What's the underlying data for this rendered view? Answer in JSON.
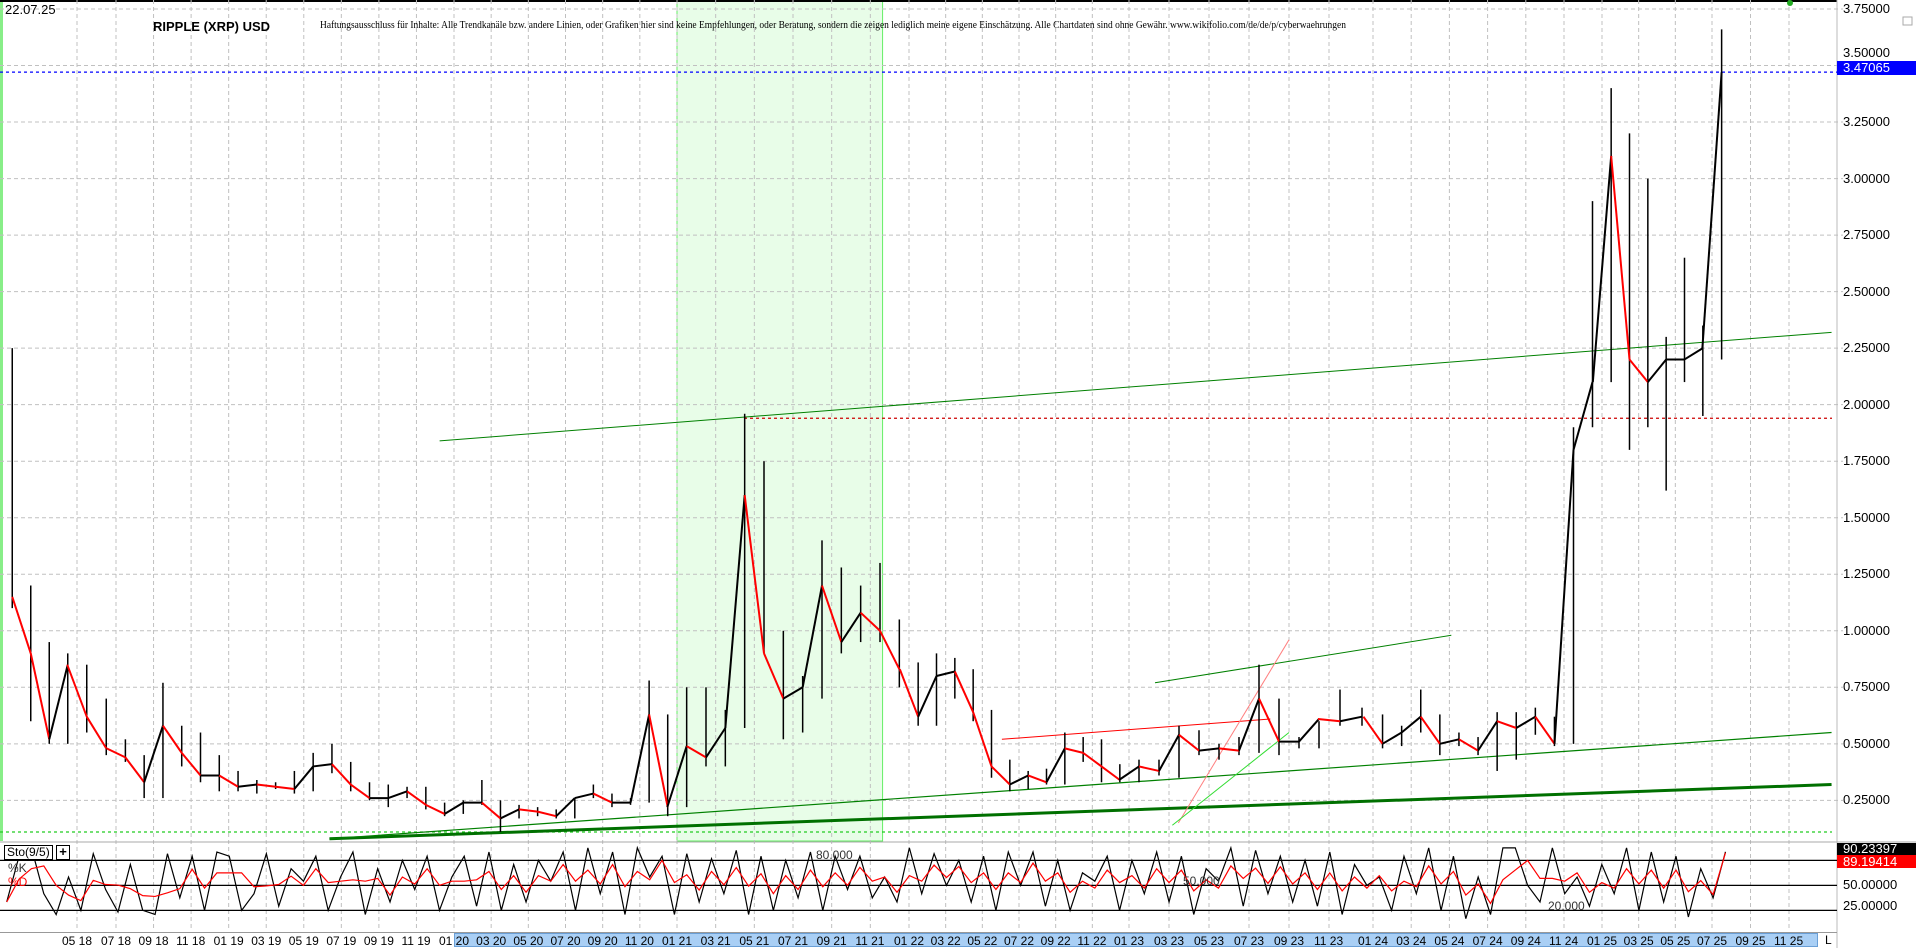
{
  "header": {
    "date": "22.07.25",
    "title": "RIPPLE (XRP) USD",
    "disclaimer": "Haftungsausschluss für Inhalte: Alle Trendkanäle bzw. andere Linien, oder Grafiken hier sind keine Empfehlungen, oder Beratung, sondern die zeigen lediglich meine eigene Einschätzung. Alle Chartdaten sind ohne Gewähr.  www.wikifolio.com/de/de/p/cyberwaehrungen"
  },
  "chart_data": [
    {
      "type": "candlestick",
      "title": "RIPPLE (XRP) USD",
      "grid": true,
      "y_axis_position": "right",
      "ylim": [
        0,
        3.75
      ],
      "y_ticks": [
        "3.75000",
        "3.50000",
        "3.25000",
        "3.00000",
        "2.75000",
        "2.50000",
        "2.25000",
        "2.00000",
        "1.75000",
        "1.50000",
        "1.25000",
        "1.00000",
        "0.75000",
        "0.50000",
        "0.25000"
      ],
      "last_price": "3.47065",
      "last_price_color": "#0000ff",
      "up_color": "#000000",
      "down_color": "#ff0000",
      "start_month": "2018-01",
      "monthly_hlc": [
        [
          2.25,
          1.1,
          1.15
        ],
        [
          1.2,
          0.6,
          0.9
        ],
        [
          0.95,
          0.5,
          0.52
        ],
        [
          0.9,
          0.5,
          0.85
        ],
        [
          0.85,
          0.55,
          0.62
        ],
        [
          0.7,
          0.45,
          0.48
        ],
        [
          0.52,
          0.42,
          0.44
        ],
        [
          0.45,
          0.26,
          0.33
        ],
        [
          0.77,
          0.26,
          0.58
        ],
        [
          0.58,
          0.4,
          0.46
        ],
        [
          0.55,
          0.33,
          0.36
        ],
        [
          0.45,
          0.29,
          0.36
        ],
        [
          0.38,
          0.29,
          0.31
        ],
        [
          0.34,
          0.28,
          0.32
        ],
        [
          0.33,
          0.3,
          0.31
        ],
        [
          0.38,
          0.28,
          0.3
        ],
        [
          0.46,
          0.29,
          0.4
        ],
        [
          0.5,
          0.37,
          0.41
        ],
        [
          0.42,
          0.29,
          0.32
        ],
        [
          0.33,
          0.25,
          0.26
        ],
        [
          0.32,
          0.22,
          0.26
        ],
        [
          0.31,
          0.26,
          0.29
        ],
        [
          0.31,
          0.21,
          0.23
        ],
        [
          0.24,
          0.18,
          0.19
        ],
        [
          0.25,
          0.19,
          0.24
        ],
        [
          0.34,
          0.23,
          0.24
        ],
        [
          0.25,
          0.11,
          0.17
        ],
        [
          0.23,
          0.17,
          0.21
        ],
        [
          0.22,
          0.18,
          0.2
        ],
        [
          0.21,
          0.17,
          0.18
        ],
        [
          0.26,
          0.17,
          0.26
        ],
        [
          0.32,
          0.26,
          0.28
        ],
        [
          0.28,
          0.22,
          0.24
        ],
        [
          0.26,
          0.23,
          0.24
        ],
        [
          0.78,
          0.24,
          0.63
        ],
        [
          0.63,
          0.18,
          0.22
        ],
        [
          0.75,
          0.22,
          0.49
        ],
        [
          0.75,
          0.4,
          0.44
        ],
        [
          0.65,
          0.4,
          0.57
        ],
        [
          1.96,
          0.57,
          1.6
        ],
        [
          1.75,
          0.9,
          0.9
        ],
        [
          1.0,
          0.52,
          0.7
        ],
        [
          0.8,
          0.55,
          0.75
        ],
        [
          1.4,
          0.7,
          1.2
        ],
        [
          1.28,
          0.9,
          0.95
        ],
        [
          1.2,
          0.95,
          1.08
        ],
        [
          1.3,
          0.95,
          1.0
        ],
        [
          1.05,
          0.75,
          0.83
        ],
        [
          0.86,
          0.58,
          0.62
        ],
        [
          0.9,
          0.58,
          0.8
        ],
        [
          0.88,
          0.7,
          0.82
        ],
        [
          0.83,
          0.6,
          0.64
        ],
        [
          0.65,
          0.35,
          0.4
        ],
        [
          0.43,
          0.29,
          0.32
        ],
        [
          0.38,
          0.3,
          0.36
        ],
        [
          0.39,
          0.32,
          0.33
        ],
        [
          0.55,
          0.32,
          0.48
        ],
        [
          0.53,
          0.42,
          0.46
        ],
        [
          0.52,
          0.33,
          0.4
        ],
        [
          0.41,
          0.33,
          0.34
        ],
        [
          0.43,
          0.33,
          0.4
        ],
        [
          0.43,
          0.36,
          0.38
        ],
        [
          0.58,
          0.35,
          0.54
        ],
        [
          0.56,
          0.45,
          0.47
        ],
        [
          0.5,
          0.43,
          0.48
        ],
        [
          0.53,
          0.45,
          0.47
        ],
        [
          0.85,
          0.46,
          0.7
        ],
        [
          0.7,
          0.45,
          0.51
        ],
        [
          0.53,
          0.48,
          0.51
        ],
        [
          0.6,
          0.48,
          0.61
        ],
        [
          0.74,
          0.58,
          0.6
        ],
        [
          0.66,
          0.58,
          0.62
        ],
        [
          0.63,
          0.48,
          0.5
        ],
        [
          0.58,
          0.49,
          0.55
        ],
        [
          0.74,
          0.55,
          0.62
        ],
        [
          0.63,
          0.45,
          0.5
        ],
        [
          0.55,
          0.49,
          0.52
        ],
        [
          0.53,
          0.45,
          0.47
        ],
        [
          0.64,
          0.38,
          0.6
        ],
        [
          0.64,
          0.43,
          0.57
        ],
        [
          0.66,
          0.54,
          0.62
        ],
        [
          0.62,
          0.49,
          0.5
        ],
        [
          1.9,
          0.5,
          1.8
        ],
        [
          2.9,
          1.9,
          2.1
        ],
        [
          3.4,
          2.1,
          3.1
        ],
        [
          3.2,
          1.8,
          2.2
        ],
        [
          3.0,
          1.9,
          2.1
        ],
        [
          2.3,
          1.62,
          2.2
        ],
        [
          2.65,
          2.1,
          2.2
        ],
        [
          2.35,
          1.95,
          2.25
        ],
        [
          3.66,
          2.2,
          3.47
        ]
      ],
      "x_tick_labels": [
        "05 18",
        "07 18",
        "09 18",
        "11 18",
        "01 19",
        "03 19",
        "05 19",
        "07 19",
        "09 19",
        "11 19",
        "01 20",
        "03 20",
        "05 20",
        "07 20",
        "09 20",
        "11 20",
        "01 21",
        "03 21",
        "05 21",
        "07 21",
        "09 21",
        "11 21",
        "01 22",
        "03 22",
        "05 22",
        "07 22",
        "09 22",
        "11 22",
        "01 23",
        "03 23",
        "05 23",
        "07 23",
        "09 23",
        "11 23",
        "01 24",
        "03 24",
        "05 24",
        "07 24",
        "09 24",
        "11 24",
        "01 25",
        "03 25",
        "05 25",
        "07 25",
        "09 25",
        "11 25"
      ],
      "highlight_period": {
        "from": "2021-01-01",
        "to": "2021-11-20",
        "color": "#e8fde8"
      },
      "trendlines": [
        {
          "from": [
            "2019-12-08",
            1.84
          ],
          "to": [
            "2026-01-10",
            2.32
          ],
          "color": "#008000",
          "width": 1
        },
        {
          "from": [
            "2019-06-12",
            0.08
          ],
          "to": [
            "2026-01-10",
            0.32
          ],
          "color": "#007000",
          "width": 3
        },
        {
          "from": [
            "2019-06-12",
            0.08
          ],
          "to": [
            "2026-01-10",
            0.55
          ],
          "color": "#008000",
          "width": 1.2
        },
        {
          "from": [
            "2023-02-10",
            0.77
          ],
          "to": [
            "2024-05-04",
            0.98
          ],
          "color": "#008000",
          "width": 1
        },
        {
          "from": [
            "2022-06-03",
            0.52
          ],
          "to": [
            "2023-08-03",
            0.61
          ],
          "color": "#ff0000",
          "width": 1
        },
        {
          "from": [
            "2023-03-15",
            0.15
          ],
          "to": [
            "2023-09-01",
            0.96
          ],
          "color": "#ff8080",
          "width": 1
        },
        {
          "from": [
            "2023-03-06",
            0.14
          ],
          "to": [
            "2023-09-01",
            0.55
          ],
          "color": "#33dd33",
          "width": 1
        }
      ],
      "horizontal_lines": [
        {
          "price": 3.47065,
          "color": "#0000ff",
          "style": "dotted"
        },
        {
          "price": 1.94,
          "from": "2021-04-15",
          "color": "#cc0000",
          "style": "dotted"
        },
        {
          "price": 0.11,
          "color": "#22cc22",
          "style": "dotted"
        }
      ]
    },
    {
      "type": "line",
      "indicator": "Sto(9/5)",
      "series": [
        {
          "name": "%K",
          "color": "#000000",
          "last": "90.23397"
        },
        {
          "name": "%D",
          "color": "#ff0000",
          "last": "89.19414"
        }
      ],
      "levels": [
        80,
        50,
        20
      ],
      "level_labels": {
        "upper": "80.000",
        "middle": "50.000",
        "lower": "20.000"
      },
      "ylim": [
        0,
        100
      ],
      "y_ticks": [
        "50.00000",
        "25.00000"
      ],
      "k_values": [
        30,
        85,
        95,
        40,
        15,
        60,
        20,
        88,
        45,
        18,
        75,
        20,
        15,
        88,
        35,
        85,
        20,
        90,
        85,
        20,
        40,
        88,
        25,
        70,
        55,
        85,
        20,
        60,
        90,
        15,
        70,
        30,
        80,
        45,
        85,
        20,
        60,
        85,
        25,
        90,
        20,
        75,
        30,
        80,
        55,
        90,
        20,
        95,
        40,
        90,
        15,
        95,
        60,
        85,
        15,
        88,
        30,
        82,
        40,
        92,
        15,
        85,
        20,
        80,
        35,
        90,
        20,
        85,
        45,
        85,
        35,
        60,
        30,
        95,
        40,
        88,
        50,
        80,
        30,
        85,
        20,
        90,
        50,
        90,
        25,
        80,
        20,
        65,
        55,
        85,
        20,
        80,
        40,
        90,
        30,
        85,
        15,
        70,
        55,
        95,
        25,
        92,
        40,
        85,
        30,
        80,
        25,
        90,
        15,
        75,
        50,
        60,
        20,
        85,
        40,
        95,
        20,
        85,
        10,
        60,
        15,
        95,
        95,
        50,
        30,
        95,
        40,
        60,
        25,
        75,
        40,
        95,
        20,
        90,
        30,
        85,
        12,
        70,
        35,
        90.23
      ]
    }
  ],
  "sto_panel": {
    "label": "Sto(9/5)",
    "add_button": "+",
    "k_label": "%K",
    "d_label": "%D"
  },
  "scrollbar": {
    "end_label": "L"
  }
}
